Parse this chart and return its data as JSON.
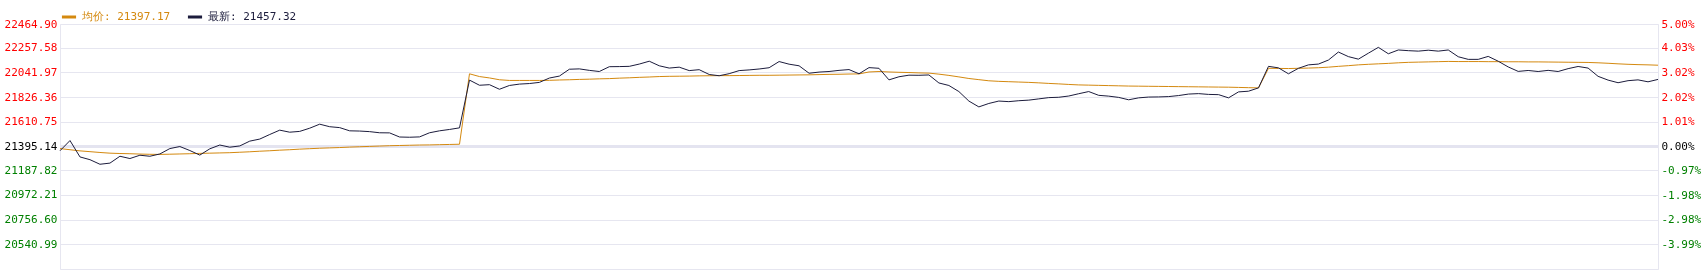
{
  "chart_data": {
    "type": "line",
    "categories": [
      null,
      null,
      null,
      null,
      null,
      null,
      null,
      null,
      null,
      null,
      null,
      null,
      null,
      null,
      null,
      null,
      null,
      null,
      null,
      null,
      null,
      null,
      null,
      null,
      null,
      null,
      null,
      null,
      null,
      null,
      null,
      null,
      null,
      null,
      null,
      null,
      null,
      null,
      null,
      null,
      null,
      null,
      null,
      null,
      null,
      null,
      null,
      null,
      null,
      null,
      null,
      null,
      null,
      null,
      null,
      null,
      null,
      null,
      null,
      null,
      null,
      null,
      null,
      null,
      null,
      null,
      null,
      null,
      null,
      null,
      null,
      null,
      null,
      null,
      null,
      null,
      null,
      null,
      null,
      null,
      null,
      null,
      null,
      null,
      null,
      null,
      null,
      null,
      null,
      null,
      null,
      null,
      null,
      null,
      null,
      null,
      null,
      null,
      null,
      null,
      null,
      null,
      null,
      null,
      null,
      null,
      null,
      null,
      null,
      null,
      null,
      null,
      null,
      null,
      null,
      null,
      null,
      null,
      null,
      null,
      null,
      null,
      null,
      null,
      null,
      null,
      null,
      null,
      null,
      null,
      null,
      null,
      null,
      null,
      null,
      null,
      null,
      null,
      null,
      null,
      null,
      null,
      null,
      null,
      null,
      null,
      null,
      null,
      null,
      null,
      null,
      null,
      null,
      null,
      null,
      null,
      null,
      null,
      null,
      null,
      null
    ],
    "ylim": [
      20325.38,
      22464.9
    ],
    "yticks": [
      {
        "value": 22464.9,
        "label": "22464.90"
      },
      {
        "value": 22257.58,
        "label": "22257.58"
      },
      {
        "value": 22041.97,
        "label": "22041.97"
      },
      {
        "value": 21826.36,
        "label": "21826.36"
      },
      {
        "value": 21610.75,
        "label": "21610.75"
      },
      {
        "value": 21395.14,
        "label": "21395.14"
      },
      {
        "value": 21187.82,
        "label": "21187.82"
      },
      {
        "value": 20972.21,
        "label": "20972.21"
      },
      {
        "value": 20756.6,
        "label": "20756.60"
      },
      {
        "value": 20540.99,
        "label": "20540.99"
      }
    ],
    "y2lim": [
      -5,
      5
    ],
    "y2ticks": [
      {
        "value": 5,
        "label": "5.00%"
      },
      {
        "value": 4.03,
        "label": "4.03%"
      },
      {
        "value": 3.02,
        "label": "3.02%"
      },
      {
        "value": 2.02,
        "label": "2.02%"
      },
      {
        "value": 1.01,
        "label": "1.01%"
      },
      {
        "value": 0,
        "label": "0.00%"
      },
      {
        "value": -0.97,
        "label": "-0.97%"
      },
      {
        "value": -1.98,
        "label": "-1.98%"
      },
      {
        "value": -2.98,
        "label": "-2.98%"
      },
      {
        "value": -3.99,
        "label": "-3.99%"
      }
    ],
    "grid": "y",
    "legend": "top left",
    "ref_lines": [
      {
        "axis": "y",
        "value": 21395.14,
        "color": "#e4e4f0"
      }
    ],
    "series": [
      {
        "name": "均价: 21397.17",
        "color": "#d4890f",
        "values": [
          21377,
          21367,
          21357,
          21350,
          21343,
          21337,
          21334,
          21332,
          21329,
          21327,
          21326,
          21328,
          21330,
          21332,
          21335,
          21337,
          21339,
          21341,
          21345,
          21349,
          21354,
          21358,
          21363,
          21367,
          21372,
          21376,
          21380,
          21383,
          21386,
          21390,
          21393,
          21396,
          21399,
          21402,
          21404,
          21406,
          21408,
          21409,
          21411,
          21413,
          21415,
          22030,
          22006,
          21994,
          21978,
          21972,
          21972,
          21972,
          21972,
          21973,
          21976,
          21978,
          21981,
          21983,
          21986,
          21988,
          21992,
          21995,
          21999,
          22002,
          22006,
          22008,
          22009,
          22010,
          22012,
          22013,
          22014,
          22014,
          22015,
          22016,
          22017,
          22017,
          22018,
          22019,
          22020,
          22021,
          22023,
          22025,
          22026,
          22028,
          22029,
          22046,
          22050,
          22046,
          22043,
          22041,
          22038,
          22036,
          22027,
          22016,
          22003,
          21989,
          21979,
          21969,
          21964,
          21961,
          21958,
          21955,
          21951,
          21946,
          21942,
          21937,
          21933,
          21931,
          21929,
          21927,
          21925,
          21923,
          21922,
          21921,
          21920,
          21919,
          21918,
          21917,
          21916,
          21915,
          21914,
          21913,
          21911,
          21909,
          21907,
          22078,
          22077,
          22076,
          22078,
          22080,
          22083,
          22088,
          22095,
          22101,
          22108,
          22113,
          22117,
          22121,
          22126,
          22130,
          22132,
          22134,
          22136,
          22138,
          22137,
          22137,
          22137,
          22136,
          22136,
          22135,
          22135,
          22134,
          22134,
          22133,
          22132,
          22131,
          22130,
          22129,
          22126,
          22122,
          22117,
          22113,
          22110,
          22108,
          22105
        ]
      },
      {
        "name": "最新: 21457.32",
        "color": "#1c1c3c",
        "values": [
          21358,
          21447,
          21304,
          21280,
          21240,
          21250,
          21310,
          21290,
          21319,
          21310,
          21330,
          21377,
          21395,
          21360,
          21320,
          21375,
          21408,
          21389,
          21400,
          21442,
          21460,
          21500,
          21538,
          21520,
          21527,
          21555,
          21590,
          21568,
          21560,
          21532,
          21530,
          21525,
          21515,
          21514,
          21478,
          21476,
          21479,
          21515,
          21532,
          21544,
          21558,
          21975,
          21930,
          21935,
          21895,
          21928,
          21940,
          21945,
          21955,
          21993,
          22010,
          22070,
          22073,
          22060,
          22050,
          22092,
          22093,
          22095,
          22115,
          22140,
          22100,
          22080,
          22088,
          22058,
          22066,
          22024,
          22013,
          22031,
          22058,
          22064,
          22072,
          22083,
          22137,
          22114,
          22100,
          22035,
          22045,
          22050,
          22060,
          22067,
          22030,
          22084,
          22078,
          21977,
          22004,
          22018,
          22017,
          22020,
          21950,
          21928,
          21875,
          21792,
          21741,
          21771,
          21792,
          21787,
          21795,
          21800,
          21811,
          21822,
          21825,
          21836,
          21856,
          21875,
          21842,
          21835,
          21824,
          21803,
          21820,
          21827,
          21828,
          21831,
          21840,
          21853,
          21857,
          21850,
          21848,
          21820,
          21872,
          21878,
          21907,
          22095,
          22082,
          22030,
          22078,
          22108,
          22115,
          22150,
          22220,
          22180,
          22158,
          22210,
          22261,
          22205,
          22238,
          22232,
          22228,
          22236,
          22228,
          22238,
          22179,
          22156,
          22156,
          22182,
          22140,
          22090,
          22051,
          22059,
          22050,
          22060,
          22050,
          22075,
          22094,
          22080,
          22008,
          21975,
          21952,
          21970,
          21977,
          21960,
          21981
        ]
      }
    ]
  }
}
